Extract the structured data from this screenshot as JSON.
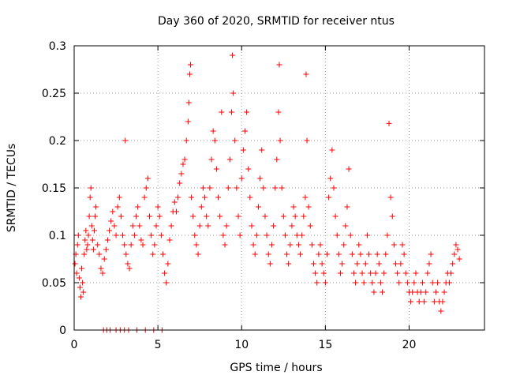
{
  "chart_data": {
    "type": "scatter",
    "title": "Day 360 of 2020, SRMTID for receiver ntus",
    "xlabel": "GPS time / hours",
    "ylabel": "SRMTID / TECUs",
    "xlim": [
      0,
      24.5
    ],
    "ylim": [
      0,
      0.3
    ],
    "grid": true,
    "x_ticks": [
      0,
      5,
      10,
      15,
      20
    ],
    "x_tick_labels": [
      "0",
      "5",
      "10",
      "15",
      "20"
    ],
    "y_ticks": [
      0,
      0.05,
      0.1,
      0.15,
      0.2,
      0.25,
      0.3
    ],
    "y_tick_labels": [
      "0",
      "0.05",
      "0.1",
      "0.15",
      "0.2",
      "0.25",
      "0.3"
    ],
    "marker": "+",
    "color": "#ff0000",
    "series": [
      {
        "name": "SRMTID",
        "points": [
          [
            0.05,
            0.07
          ],
          [
            0.1,
            0.08
          ],
          [
            0.15,
            0.06
          ],
          [
            0.2,
            0.09
          ],
          [
            0.25,
            0.1
          ],
          [
            0.3,
            0.055
          ],
          [
            0.35,
            0.045
          ],
          [
            0.4,
            0.035
          ],
          [
            0.45,
            0.065
          ],
          [
            0.5,
            0.05
          ],
          [
            0.55,
            0.04
          ],
          [
            0.6,
            0.08
          ],
          [
            0.65,
            0.095
          ],
          [
            0.7,
            0.105
          ],
          [
            0.75,
            0.085
          ],
          [
            0.8,
            0.09
          ],
          [
            0.85,
            0.1
          ],
          [
            0.9,
            0.12
          ],
          [
            0.95,
            0.14
          ],
          [
            1.0,
            0.15
          ],
          [
            1.05,
            0.11
          ],
          [
            1.1,
            0.095
          ],
          [
            1.15,
            0.085
          ],
          [
            1.2,
            0.105
          ],
          [
            1.25,
            0.12
          ],
          [
            1.3,
            0.13
          ],
          [
            1.4,
            0.09
          ],
          [
            1.5,
            0.08
          ],
          [
            1.6,
            0.065
          ],
          [
            1.7,
            0.06
          ],
          [
            1.8,
            0.075
          ],
          [
            1.9,
            0.085
          ],
          [
            2.0,
            0.095
          ],
          [
            2.1,
            0.105
          ],
          [
            2.2,
            0.115
          ],
          [
            2.3,
            0.125
          ],
          [
            2.4,
            0.11
          ],
          [
            2.5,
            0.1
          ],
          [
            2.6,
            0.13
          ],
          [
            2.7,
            0.14
          ],
          [
            2.8,
            0.12
          ],
          [
            2.9,
            0.1
          ],
          [
            3.0,
            0.09
          ],
          [
            3.05,
            0.2
          ],
          [
            3.1,
            0.08
          ],
          [
            3.2,
            0.07
          ],
          [
            3.3,
            0.065
          ],
          [
            3.4,
            0.09
          ],
          [
            3.5,
            0.11
          ],
          [
            3.6,
            0.1
          ],
          [
            3.7,
            0.12
          ],
          [
            3.8,
            0.13
          ],
          [
            3.9,
            0.11
          ],
          [
            4.0,
            0.095
          ],
          [
            4.1,
            0.09
          ],
          [
            4.2,
            0.14
          ],
          [
            4.3,
            0.15
          ],
          [
            4.4,
            0.16
          ],
          [
            4.5,
            0.12
          ],
          [
            4.6,
            0.1
          ],
          [
            4.7,
            0.08
          ],
          [
            4.8,
            0.09
          ],
          [
            4.9,
            0.11
          ],
          [
            5.0,
            0.13
          ],
          [
            5.1,
            0.12
          ],
          [
            5.2,
            0.1
          ],
          [
            5.3,
            0.08
          ],
          [
            5.4,
            0.06
          ],
          [
            5.5,
            0.05
          ],
          [
            5.6,
            0.07
          ],
          [
            5.7,
            0.095
          ],
          [
            5.8,
            0.11
          ],
          [
            5.9,
            0.125
          ],
          [
            6.0,
            0.135
          ],
          [
            6.1,
            0.125
          ],
          [
            6.2,
            0.14
          ],
          [
            6.3,
            0.155
          ],
          [
            6.4,
            0.165
          ],
          [
            6.5,
            0.175
          ],
          [
            6.6,
            0.18
          ],
          [
            6.7,
            0.2
          ],
          [
            6.8,
            0.22
          ],
          [
            6.85,
            0.24
          ],
          [
            6.9,
            0.27
          ],
          [
            6.95,
            0.28
          ],
          [
            7.0,
            0.14
          ],
          [
            7.1,
            0.12
          ],
          [
            7.2,
            0.1
          ],
          [
            7.3,
            0.09
          ],
          [
            7.4,
            0.08
          ],
          [
            7.5,
            0.11
          ],
          [
            7.6,
            0.13
          ],
          [
            7.7,
            0.15
          ],
          [
            7.8,
            0.14
          ],
          [
            7.9,
            0.12
          ],
          [
            8.0,
            0.11
          ],
          [
            8.1,
            0.15
          ],
          [
            8.2,
            0.18
          ],
          [
            8.3,
            0.21
          ],
          [
            8.4,
            0.2
          ],
          [
            8.5,
            0.17
          ],
          [
            8.6,
            0.14
          ],
          [
            8.7,
            0.12
          ],
          [
            8.8,
            0.23
          ],
          [
            8.9,
            0.1
          ],
          [
            9.0,
            0.09
          ],
          [
            9.1,
            0.11
          ],
          [
            9.2,
            0.15
          ],
          [
            9.3,
            0.18
          ],
          [
            9.4,
            0.23
          ],
          [
            9.45,
            0.29
          ],
          [
            9.5,
            0.25
          ],
          [
            9.6,
            0.2
          ],
          [
            9.7,
            0.15
          ],
          [
            9.8,
            0.12
          ],
          [
            9.9,
            0.1
          ],
          [
            10.0,
            0.16
          ],
          [
            10.1,
            0.19
          ],
          [
            10.2,
            0.21
          ],
          [
            10.3,
            0.23
          ],
          [
            10.4,
            0.17
          ],
          [
            10.5,
            0.14
          ],
          [
            10.6,
            0.11
          ],
          [
            10.7,
            0.09
          ],
          [
            10.8,
            0.08
          ],
          [
            10.9,
            0.1
          ],
          [
            11.0,
            0.13
          ],
          [
            11.1,
            0.16
          ],
          [
            11.2,
            0.19
          ],
          [
            11.3,
            0.15
          ],
          [
            11.4,
            0.12
          ],
          [
            11.5,
            0.1
          ],
          [
            11.6,
            0.08
          ],
          [
            11.7,
            0.07
          ],
          [
            11.8,
            0.09
          ],
          [
            11.9,
            0.11
          ],
          [
            12.0,
            0.15
          ],
          [
            12.1,
            0.18
          ],
          [
            12.2,
            0.23
          ],
          [
            12.25,
            0.28
          ],
          [
            12.3,
            0.2
          ],
          [
            12.4,
            0.15
          ],
          [
            12.5,
            0.12
          ],
          [
            12.6,
            0.1
          ],
          [
            12.7,
            0.08
          ],
          [
            12.8,
            0.07
          ],
          [
            12.9,
            0.09
          ],
          [
            13.0,
            0.11
          ],
          [
            13.1,
            0.13
          ],
          [
            13.2,
            0.12
          ],
          [
            13.3,
            0.1
          ],
          [
            13.4,
            0.09
          ],
          [
            13.5,
            0.08
          ],
          [
            13.6,
            0.1
          ],
          [
            13.7,
            0.12
          ],
          [
            13.8,
            0.14
          ],
          [
            13.85,
            0.27
          ],
          [
            13.9,
            0.2
          ],
          [
            14.0,
            0.13
          ],
          [
            14.1,
            0.11
          ],
          [
            14.2,
            0.09
          ],
          [
            14.3,
            0.07
          ],
          [
            14.4,
            0.06
          ],
          [
            14.5,
            0.05
          ],
          [
            14.6,
            0.08
          ],
          [
            14.7,
            0.09
          ],
          [
            14.8,
            0.07
          ],
          [
            14.9,
            0.06
          ],
          [
            15.0,
            0.05
          ],
          [
            15.1,
            0.08
          ],
          [
            15.2,
            0.14
          ],
          [
            15.3,
            0.16
          ],
          [
            15.4,
            0.19
          ],
          [
            15.5,
            0.15
          ],
          [
            15.6,
            0.12
          ],
          [
            15.7,
            0.1
          ],
          [
            15.8,
            0.08
          ],
          [
            15.9,
            0.06
          ],
          [
            16.0,
            0.07
          ],
          [
            16.1,
            0.09
          ],
          [
            16.2,
            0.11
          ],
          [
            16.3,
            0.13
          ],
          [
            16.4,
            0.17
          ],
          [
            16.5,
            0.1
          ],
          [
            16.6,
            0.08
          ],
          [
            16.7,
            0.06
          ],
          [
            16.8,
            0.05
          ],
          [
            16.9,
            0.07
          ],
          [
            17.0,
            0.09
          ],
          [
            17.1,
            0.08
          ],
          [
            17.2,
            0.06
          ],
          [
            17.3,
            0.05
          ],
          [
            17.4,
            0.07
          ],
          [
            17.5,
            0.1
          ],
          [
            17.6,
            0.08
          ],
          [
            17.7,
            0.06
          ],
          [
            17.8,
            0.05
          ],
          [
            17.9,
            0.04
          ],
          [
            18.0,
            0.06
          ],
          [
            18.1,
            0.08
          ],
          [
            18.2,
            0.07
          ],
          [
            18.3,
            0.05
          ],
          [
            18.4,
            0.04
          ],
          [
            18.5,
            0.06
          ],
          [
            18.6,
            0.08
          ],
          [
            18.7,
            0.1
          ],
          [
            18.8,
            0.218
          ],
          [
            18.9,
            0.14
          ],
          [
            19.0,
            0.12
          ],
          [
            19.1,
            0.09
          ],
          [
            19.2,
            0.07
          ],
          [
            19.3,
            0.06
          ],
          [
            19.4,
            0.05
          ],
          [
            19.5,
            0.07
          ],
          [
            19.6,
            0.09
          ],
          [
            19.7,
            0.08
          ],
          [
            19.8,
            0.06
          ],
          [
            19.9,
            0.05
          ],
          [
            20.0,
            0.04
          ],
          [
            20.1,
            0.03
          ],
          [
            20.2,
            0.04
          ],
          [
            20.3,
            0.05
          ],
          [
            20.4,
            0.06
          ],
          [
            20.5,
            0.04
          ],
          [
            20.6,
            0.03
          ],
          [
            20.7,
            0.04
          ],
          [
            20.8,
            0.05
          ],
          [
            20.9,
            0.03
          ],
          [
            21.0,
            0.04
          ],
          [
            21.1,
            0.06
          ],
          [
            21.2,
            0.07
          ],
          [
            21.3,
            0.08
          ],
          [
            21.4,
            0.05
          ],
          [
            21.5,
            0.03
          ],
          [
            21.6,
            0.04
          ],
          [
            21.7,
            0.05
          ],
          [
            21.8,
            0.03
          ],
          [
            21.9,
            0.02
          ],
          [
            22.0,
            0.03
          ],
          [
            22.1,
            0.04
          ],
          [
            22.2,
            0.05
          ],
          [
            22.3,
            0.06
          ],
          [
            22.4,
            0.05
          ],
          [
            22.5,
            0.06
          ],
          [
            22.6,
            0.07
          ],
          [
            22.7,
            0.08
          ],
          [
            22.8,
            0.09
          ],
          [
            22.9,
            0.085
          ],
          [
            23.0,
            0.075
          ],
          [
            1.75,
            0.0
          ],
          [
            1.95,
            0.0
          ],
          [
            2.15,
            0.0
          ],
          [
            2.5,
            0.0
          ],
          [
            2.75,
            0.0
          ],
          [
            3.0,
            0.0
          ],
          [
            3.25,
            0.0
          ],
          [
            3.75,
            0.0
          ],
          [
            4.25,
            0.0
          ],
          [
            4.75,
            0.0
          ],
          [
            5.25,
            0.0
          ]
        ]
      }
    ]
  }
}
